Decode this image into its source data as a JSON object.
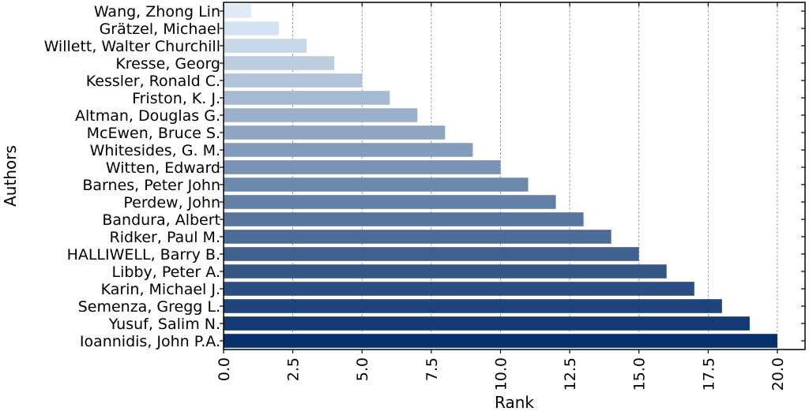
{
  "chart_data": {
    "type": "bar",
    "orientation": "horizontal",
    "xlabel": "Rank",
    "ylabel": "Authors",
    "xlim": [
      0,
      21
    ],
    "xticks": [
      0,
      2.5,
      5,
      7.5,
      10,
      12.5,
      15,
      17.5,
      20
    ],
    "xtick_labels": [
      "0.0",
      "2.5",
      "5.0",
      "7.5",
      "10.0",
      "12.5",
      "15.0",
      "17.5",
      "20.0"
    ],
    "grid": "vertical dashed",
    "color_scale": [
      "#deebf7",
      "#08306b"
    ],
    "categories": [
      "Wang, Zhong Lin",
      "Grätzel, Michael",
      "Willett, Walter Churchill",
      "Kresse, Georg",
      "Kessler, Ronald C.",
      "Friston, K. J.",
      "Altman, Douglas G.",
      "McEwen, Bruce S.",
      "Whitesides, G. M.",
      "Witten, Edward",
      "Barnes, Peter John",
      "Perdew, John",
      "Bandura, Albert",
      "Ridker, Paul M.",
      "HALLIWELL, Barry B.",
      "Libby, Peter A.",
      "Karin, Michael J.",
      "Semenza, Gregg L.",
      "Yusuf, Salim N.",
      "Ioannidis, John P.A."
    ],
    "values": [
      1,
      2,
      3,
      4,
      5,
      6,
      7,
      8,
      9,
      10,
      11,
      12,
      13,
      14,
      15,
      16,
      17,
      18,
      19,
      20
    ]
  }
}
